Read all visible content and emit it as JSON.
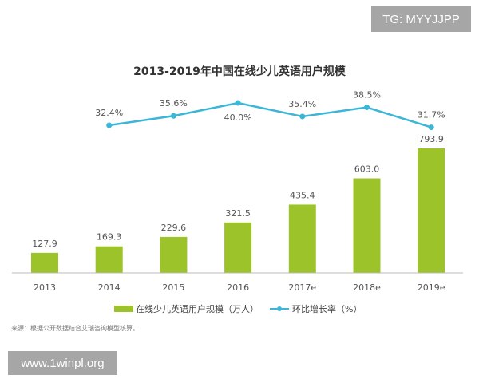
{
  "watermarks": {
    "top_right": "TG: MYYJJPP",
    "bottom_left": "www.1winpl.org"
  },
  "colors": {
    "bar": "#9dc32b",
    "line": "#3bb6d6",
    "text": "#555555"
  },
  "chart_data": {
    "type": "bar+line",
    "title": "2013-2019年中国在线少儿英语用户规模",
    "categories": [
      "2013",
      "2014",
      "2015",
      "2016",
      "2017e",
      "2018e",
      "2019e"
    ],
    "series": [
      {
        "name": "在线少儿英语用户规模（万人）",
        "type": "bar",
        "values": [
          127.9,
          169.3,
          229.6,
          321.5,
          435.4,
          603.0,
          793.9
        ],
        "labels": [
          "127.9",
          "169.3",
          "229.6",
          "321.5",
          "435.4",
          "603.0",
          "793.9"
        ]
      },
      {
        "name": "环比增长率（%）",
        "type": "line",
        "values": [
          null,
          32.4,
          35.6,
          40.0,
          35.4,
          38.5,
          31.7
        ],
        "labels": [
          "",
          "32.4%",
          "35.6%",
          "40.0%",
          "35.4%",
          "38.5%",
          "31.7%"
        ]
      }
    ],
    "legend_position": "bottom",
    "grid": false,
    "source": "来源：根据公开数据结合艾瑞咨询模型核算。"
  }
}
